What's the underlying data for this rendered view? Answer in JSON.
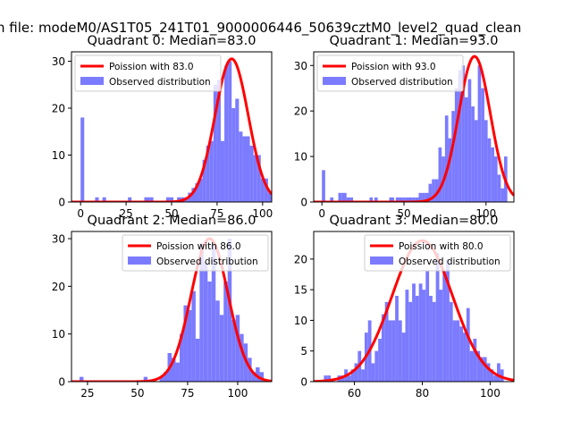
{
  "suptitle": "n file: modeM0/AS1T05_241T01_9000006446_50639cztM0_level2_quad_clean",
  "colors": {
    "hist": "#7b7bff",
    "poisson": "#ff0000",
    "axis": "#000000"
  },
  "chart_data": [
    {
      "type": "bar",
      "title": "Quadrant 0: Median=83.0",
      "xlim": [
        -5,
        105
      ],
      "ylim": [
        0,
        32
      ],
      "xticks": [
        0,
        25,
        50,
        75,
        100
      ],
      "xtick_labels": [
        "0",
        "25",
        "50",
        "75",
        "100"
      ],
      "yticks": [
        0,
        10,
        20,
        30
      ],
      "ytick_labels": [
        "0",
        "10",
        "20",
        "30"
      ],
      "legend": {
        "position": "top-left",
        "line_label": "Poission with 83.0",
        "bar_label": "Observed distribution"
      },
      "poisson_mean": 83.0,
      "poisson_peak": 30.5,
      "bins": [
        [
          0,
          2,
          18
        ],
        [
          8,
          10,
          1
        ],
        [
          12,
          14,
          1
        ],
        [
          26,
          28,
          1
        ],
        [
          35,
          38,
          1
        ],
        [
          38,
          40,
          1
        ],
        [
          40,
          42,
          0
        ],
        [
          42,
          44,
          0
        ],
        [
          44,
          46,
          0
        ],
        [
          47,
          49,
          1
        ],
        [
          49,
          51,
          1
        ],
        [
          51,
          53,
          0
        ],
        [
          53,
          55,
          1
        ],
        [
          55,
          57,
          1
        ],
        [
          57,
          59,
          1
        ],
        [
          59,
          61,
          2
        ],
        [
          61,
          63,
          3
        ],
        [
          63,
          65,
          4
        ],
        [
          65,
          67,
          5
        ],
        [
          67,
          69,
          9
        ],
        [
          69,
          71,
          12
        ],
        [
          71,
          73,
          13
        ],
        [
          73,
          75,
          25
        ],
        [
          75,
          77,
          26
        ],
        [
          77,
          79,
          13
        ],
        [
          79,
          81,
          29
        ],
        [
          81,
          83,
          30
        ],
        [
          83,
          85,
          20
        ],
        [
          85,
          87,
          22
        ],
        [
          87,
          89,
          15
        ],
        [
          89,
          91,
          14
        ],
        [
          91,
          93,
          14
        ],
        [
          93,
          95,
          12
        ],
        [
          95,
          97,
          10
        ],
        [
          97,
          99,
          10
        ],
        [
          99,
          101,
          5
        ],
        [
          101,
          103,
          5
        ],
        [
          103,
          105,
          2
        ]
      ]
    },
    {
      "type": "bar",
      "title": "Quadrant 1: Median=93.0",
      "xlim": [
        -5,
        117
      ],
      "ylim": [
        0,
        33
      ],
      "xticks": [
        0,
        50,
        100
      ],
      "xtick_labels": [
        "0",
        "50",
        "100"
      ],
      "yticks": [
        0,
        10,
        20,
        30
      ],
      "ytick_labels": [
        "0",
        "10",
        "20",
        "30"
      ],
      "legend": {
        "position": "top-left",
        "line_label": "Poission with 93.0",
        "bar_label": "Observed distribution"
      },
      "poisson_mean": 93.0,
      "poisson_peak": 32.0,
      "bins": [
        [
          0,
          2,
          7
        ],
        [
          5,
          7,
          1
        ],
        [
          10,
          12,
          2
        ],
        [
          12,
          15,
          2
        ],
        [
          15,
          17,
          1
        ],
        [
          17,
          19,
          1
        ],
        [
          29,
          31,
          1
        ],
        [
          32,
          34,
          1
        ],
        [
          41,
          44,
          1
        ],
        [
          45,
          47,
          1
        ],
        [
          47,
          49,
          1
        ],
        [
          49,
          51,
          1
        ],
        [
          51,
          53,
          1
        ],
        [
          53,
          55,
          1
        ],
        [
          55,
          57,
          1
        ],
        [
          57,
          59,
          1
        ],
        [
          59,
          61,
          2
        ],
        [
          61,
          63,
          2
        ],
        [
          63,
          65,
          2
        ],
        [
          65,
          67,
          4
        ],
        [
          67,
          69,
          5
        ],
        [
          69,
          71,
          5
        ],
        [
          71,
          73,
          12
        ],
        [
          73,
          75,
          10
        ],
        [
          75,
          77,
          19
        ],
        [
          77,
          79,
          14
        ],
        [
          79,
          81,
          20
        ],
        [
          81,
          83,
          25
        ],
        [
          83,
          85,
          29
        ],
        [
          85,
          87,
          30
        ],
        [
          87,
          89,
          23
        ],
        [
          89,
          91,
          27
        ],
        [
          91,
          93,
          21
        ],
        [
          93,
          95,
          18
        ],
        [
          95,
          97,
          30
        ],
        [
          97,
          99,
          25
        ],
        [
          99,
          101,
          18
        ],
        [
          101,
          103,
          14
        ],
        [
          103,
          105,
          12
        ],
        [
          105,
          107,
          10
        ],
        [
          107,
          109,
          6
        ],
        [
          109,
          111,
          3
        ],
        [
          111,
          113,
          10
        ]
      ]
    },
    {
      "type": "bar",
      "title": "Quadrant 2: Median=86.0",
      "xlim": [
        17,
        117
      ],
      "ylim": [
        0,
        31.5
      ],
      "xticks": [
        25,
        50,
        75,
        100
      ],
      "xtick_labels": [
        "25",
        "50",
        "75",
        "100"
      ],
      "yticks": [
        0,
        10,
        20,
        30
      ],
      "ytick_labels": [
        "0",
        "10",
        "20",
        "30"
      ],
      "legend": {
        "position": "top-right",
        "line_label": "Poission with 86.0",
        "bar_label": "Observed distribution"
      },
      "poisson_mean": 86.0,
      "poisson_peak": 30.0,
      "bins": [
        [
          21,
          23,
          1
        ],
        [
          53,
          55,
          1
        ],
        [
          61,
          63,
          1
        ],
        [
          63,
          65,
          2
        ],
        [
          65,
          67,
          6
        ],
        [
          67,
          69,
          5
        ],
        [
          69,
          71,
          4
        ],
        [
          71,
          73,
          10
        ],
        [
          73,
          75,
          16
        ],
        [
          75,
          77,
          15
        ],
        [
          77,
          79,
          19
        ],
        [
          79,
          81,
          9
        ],
        [
          81,
          83,
          29
        ],
        [
          83,
          85,
          25
        ],
        [
          85,
          87,
          21
        ],
        [
          87,
          89,
          29
        ],
        [
          89,
          91,
          17
        ],
        [
          91,
          93,
          14
        ],
        [
          93,
          95,
          21
        ],
        [
          95,
          97,
          30
        ],
        [
          97,
          99,
          13
        ],
        [
          99,
          101,
          14
        ],
        [
          101,
          103,
          10
        ],
        [
          103,
          105,
          8
        ],
        [
          105,
          107,
          5
        ],
        [
          107,
          109,
          2
        ],
        [
          109,
          111,
          3
        ],
        [
          111,
          113,
          2
        ]
      ]
    },
    {
      "type": "bar",
      "title": "Quadrant 3: Median=80.0",
      "xlim": [
        48,
        107
      ],
      "ylim": [
        0,
        24.5
      ],
      "xticks": [
        60,
        80,
        100
      ],
      "xtick_labels": [
        "60",
        "80",
        "100"
      ],
      "yticks": [
        0,
        5,
        10,
        15,
        20
      ],
      "ytick_labels": [
        "0",
        "5",
        "10",
        "15",
        "20"
      ],
      "legend": {
        "position": "top-right",
        "line_label": "Poission with 80.0",
        "bar_label": "Observed distribution"
      },
      "poisson_mean": 80.0,
      "poisson_peak": 23.0,
      "bins": [
        [
          51,
          52,
          1
        ],
        [
          52,
          53,
          1
        ],
        [
          55,
          56,
          1
        ],
        [
          56,
          57,
          1
        ],
        [
          57,
          58,
          2
        ],
        [
          58,
          59,
          1
        ],
        [
          59,
          60,
          2
        ],
        [
          60,
          61,
          3
        ],
        [
          61,
          62,
          5
        ],
        [
          62,
          63,
          2
        ],
        [
          63,
          64,
          8
        ],
        [
          64,
          65,
          10
        ],
        [
          65,
          66,
          3
        ],
        [
          66,
          67,
          5
        ],
        [
          67,
          68,
          7
        ],
        [
          68,
          69,
          11
        ],
        [
          69,
          70,
          13
        ],
        [
          70,
          71,
          10
        ],
        [
          71,
          72,
          10
        ],
        [
          72,
          73,
          14
        ],
        [
          73,
          74,
          10
        ],
        [
          74,
          75,
          8
        ],
        [
          75,
          76,
          15
        ],
        [
          76,
          77,
          13
        ],
        [
          77,
          78,
          16
        ],
        [
          78,
          79,
          14
        ],
        [
          79,
          80,
          16
        ],
        [
          80,
          81,
          15
        ],
        [
          81,
          82,
          18
        ],
        [
          82,
          83,
          14
        ],
        [
          83,
          84,
          13
        ],
        [
          84,
          85,
          21
        ],
        [
          85,
          86,
          15
        ],
        [
          86,
          87,
          18
        ],
        [
          87,
          88,
          20
        ],
        [
          88,
          89,
          13
        ],
        [
          89,
          90,
          10
        ],
        [
          90,
          91,
          10
        ],
        [
          91,
          92,
          9
        ],
        [
          92,
          93,
          8
        ],
        [
          93,
          94,
          12
        ],
        [
          94,
          95,
          5
        ],
        [
          95,
          96,
          7
        ],
        [
          96,
          97,
          5
        ],
        [
          97,
          98,
          4
        ],
        [
          98,
          99,
          4
        ],
        [
          99,
          100,
          3
        ],
        [
          100,
          101,
          2
        ],
        [
          101,
          102,
          1
        ],
        [
          102,
          103,
          3
        ],
        [
          103,
          104,
          2
        ]
      ]
    }
  ]
}
